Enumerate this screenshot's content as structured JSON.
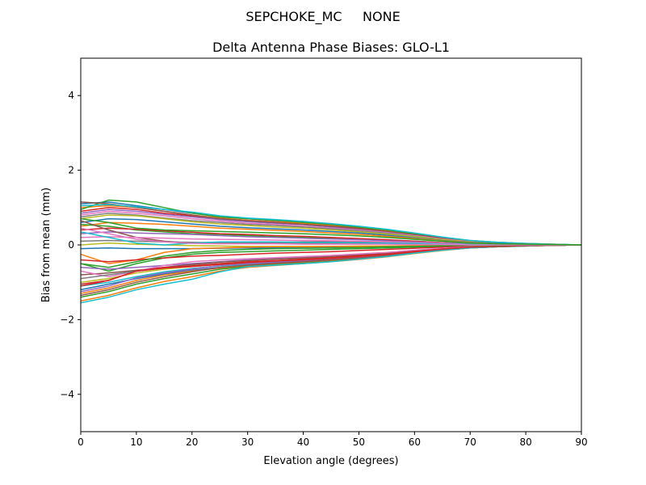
{
  "suptitle": "SEPCHOKE_MC     NONE",
  "chart_data": {
    "type": "line",
    "title": "Delta Antenna Phase Biases: GLO-L1",
    "xlabel": "Elevation angle (degrees)",
    "ylabel": "Bias from mean (mm)",
    "xlim": [
      0,
      90
    ],
    "ylim": [
      -5,
      5
    ],
    "xticks": [
      "0",
      "10",
      "20",
      "30",
      "40",
      "50",
      "60",
      "70",
      "80",
      "90"
    ],
    "yticks": [
      "−4",
      "−2",
      "0",
      "2",
      "4"
    ],
    "grid": false,
    "x": [
      0,
      5,
      10,
      15,
      20,
      25,
      30,
      35,
      40,
      45,
      50,
      55,
      60,
      65,
      70,
      75,
      80,
      85,
      90
    ],
    "series": [
      {
        "color": "#1f77b4",
        "values": [
          1.1,
          1.15,
          1.05,
          0.95,
          0.85,
          0.75,
          0.7,
          0.65,
          0.6,
          0.55,
          0.48,
          0.4,
          0.3,
          0.2,
          0.1,
          0.06,
          0.03,
          0.01,
          0.0
        ]
      },
      {
        "color": "#ff7f0e",
        "values": [
          1.0,
          1.05,
          1.0,
          0.9,
          0.8,
          0.72,
          0.66,
          0.62,
          0.58,
          0.52,
          0.45,
          0.38,
          0.28,
          0.18,
          0.1,
          0.06,
          0.03,
          0.01,
          0.0
        ]
      },
      {
        "color": "#2ca02c",
        "values": [
          0.95,
          1.2,
          1.15,
          1.0,
          0.85,
          0.75,
          0.7,
          0.66,
          0.6,
          0.55,
          0.47,
          0.4,
          0.3,
          0.2,
          0.12,
          0.07,
          0.04,
          0.02,
          0.0
        ]
      },
      {
        "color": "#d62728",
        "values": [
          0.9,
          1.0,
          0.95,
          0.85,
          0.78,
          0.7,
          0.64,
          0.6,
          0.55,
          0.5,
          0.44,
          0.36,
          0.27,
          0.18,
          0.1,
          0.06,
          0.03,
          0.01,
          0.0
        ]
      },
      {
        "color": "#9467bd",
        "values": [
          0.85,
          0.95,
          0.9,
          0.82,
          0.75,
          0.68,
          0.62,
          0.58,
          0.54,
          0.48,
          0.42,
          0.35,
          0.26,
          0.17,
          0.09,
          0.05,
          0.03,
          0.01,
          0.0
        ]
      },
      {
        "color": "#8c564b",
        "values": [
          1.15,
          1.1,
          1.0,
          0.9,
          0.8,
          0.7,
          0.65,
          0.6,
          0.55,
          0.5,
          0.43,
          0.36,
          0.27,
          0.18,
          0.1,
          0.05,
          0.03,
          0.01,
          0.0
        ]
      },
      {
        "color": "#e377c2",
        "values": [
          0.8,
          0.9,
          0.85,
          0.78,
          0.7,
          0.64,
          0.58,
          0.55,
          0.5,
          0.45,
          0.4,
          0.33,
          0.25,
          0.16,
          0.09,
          0.05,
          0.02,
          0.01,
          0.0
        ]
      },
      {
        "color": "#7f7f7f",
        "values": [
          0.75,
          0.85,
          0.8,
          0.72,
          0.65,
          0.6,
          0.55,
          0.52,
          0.48,
          0.43,
          0.38,
          0.31,
          0.23,
          0.15,
          0.08,
          0.05,
          0.02,
          0.01,
          0.0
        ]
      },
      {
        "color": "#bcbd22",
        "values": [
          0.7,
          0.8,
          0.78,
          0.7,
          0.62,
          0.56,
          0.52,
          0.48,
          0.45,
          0.4,
          0.35,
          0.29,
          0.22,
          0.14,
          0.08,
          0.04,
          0.02,
          0.01,
          0.0
        ]
      },
      {
        "color": "#17becf",
        "values": [
          1.05,
          1.08,
          1.02,
          0.95,
          0.88,
          0.78,
          0.72,
          0.68,
          0.63,
          0.57,
          0.5,
          0.42,
          0.32,
          0.21,
          0.12,
          0.07,
          0.04,
          0.02,
          0.0
        ]
      },
      {
        "color": "#1f77b4",
        "values": [
          0.6,
          0.7,
          0.68,
          0.62,
          0.56,
          0.5,
          0.46,
          0.43,
          0.4,
          0.36,
          0.32,
          0.26,
          0.19,
          0.12,
          0.07,
          0.04,
          0.02,
          0.01,
          0.0
        ]
      },
      {
        "color": "#ff7f0e",
        "values": [
          0.5,
          0.6,
          0.58,
          0.55,
          0.5,
          0.45,
          0.42,
          0.39,
          0.36,
          0.32,
          0.28,
          0.23,
          0.17,
          0.11,
          0.06,
          0.03,
          0.02,
          0.01,
          0.0
        ]
      },
      {
        "color": "#2ca02c",
        "values": [
          0.55,
          0.5,
          0.4,
          0.35,
          0.3,
          0.28,
          0.25,
          0.22,
          0.2,
          0.18,
          0.16,
          0.13,
          0.1,
          0.06,
          0.03,
          0.02,
          0.01,
          0.0,
          0.0
        ]
      },
      {
        "color": "#d62728",
        "values": [
          0.4,
          0.45,
          0.42,
          0.38,
          0.34,
          0.3,
          0.28,
          0.25,
          0.23,
          0.2,
          0.17,
          0.14,
          0.1,
          0.06,
          0.03,
          0.02,
          0.01,
          0.0,
          0.0
        ]
      },
      {
        "color": "#9467bd",
        "values": [
          0.3,
          0.35,
          0.32,
          0.3,
          0.28,
          0.25,
          0.22,
          0.2,
          0.18,
          0.16,
          0.14,
          0.11,
          0.08,
          0.05,
          0.03,
          0.02,
          0.01,
          0.0,
          0.0
        ]
      },
      {
        "color": "#8c564b",
        "values": [
          0.65,
          0.4,
          0.2,
          0.1,
          0.05,
          0.05,
          0.06,
          0.07,
          0.08,
          0.08,
          0.08,
          0.07,
          0.05,
          0.03,
          0.02,
          0.01,
          0.0,
          0.0,
          0.0
        ]
      },
      {
        "color": "#e377c2",
        "values": [
          0.2,
          0.22,
          0.2,
          0.18,
          0.16,
          0.15,
          0.14,
          0.13,
          0.12,
          0.11,
          0.1,
          0.08,
          0.06,
          0.04,
          0.02,
          0.01,
          0.01,
          0.0,
          0.0
        ]
      },
      {
        "color": "#7f7f7f",
        "values": [
          0.1,
          0.12,
          0.1,
          0.08,
          0.07,
          0.06,
          0.05,
          0.05,
          0.04,
          0.04,
          0.03,
          0.03,
          0.02,
          0.01,
          0.01,
          0.0,
          0.0,
          0.0,
          0.0
        ]
      },
      {
        "color": "#bcbd22",
        "values": [
          0.0,
          0.05,
          0.02,
          0.0,
          -0.02,
          -0.03,
          -0.04,
          -0.04,
          -0.04,
          -0.04,
          -0.03,
          -0.03,
          -0.02,
          -0.01,
          -0.01,
          0.0,
          0.0,
          0.0,
          0.0
        ]
      },
      {
        "color": "#17becf",
        "values": [
          0.35,
          0.2,
          0.05,
          0.0,
          0.05,
          0.08,
          0.08,
          0.08,
          0.07,
          0.07,
          0.06,
          0.05,
          0.04,
          0.02,
          0.01,
          0.01,
          0.0,
          0.0,
          0.0
        ]
      },
      {
        "color": "#1f77b4",
        "values": [
          -0.1,
          -0.08,
          -0.1,
          -0.1,
          -0.1,
          -0.09,
          -0.08,
          -0.08,
          -0.07,
          -0.07,
          -0.06,
          -0.05,
          -0.04,
          -0.02,
          -0.01,
          -0.01,
          0.0,
          0.0,
          0.0
        ]
      },
      {
        "color": "#ff7f0e",
        "values": [
          -0.25,
          -0.5,
          -0.4,
          -0.2,
          -0.1,
          -0.08,
          -0.06,
          -0.05,
          -0.05,
          -0.04,
          -0.04,
          -0.03,
          -0.02,
          -0.01,
          -0.01,
          0.0,
          0.0,
          0.0,
          0.0
        ]
      },
      {
        "color": "#2ca02c",
        "values": [
          -0.5,
          -0.7,
          -0.5,
          -0.35,
          -0.25,
          -0.2,
          -0.18,
          -0.16,
          -0.14,
          -0.12,
          -0.1,
          -0.08,
          -0.06,
          -0.04,
          -0.02,
          -0.01,
          -0.01,
          0.0,
          0.0
        ]
      },
      {
        "color": "#d62728",
        "values": [
          -0.4,
          -0.45,
          -0.4,
          -0.35,
          -0.3,
          -0.28,
          -0.25,
          -0.22,
          -0.2,
          -0.18,
          -0.15,
          -0.12,
          -0.09,
          -0.06,
          -0.03,
          -0.02,
          -0.01,
          0.0,
          0.0
        ]
      },
      {
        "color": "#9467bd",
        "values": [
          -0.6,
          -0.65,
          -0.6,
          -0.55,
          -0.5,
          -0.45,
          -0.4,
          -0.36,
          -0.33,
          -0.3,
          -0.26,
          -0.21,
          -0.15,
          -0.1,
          -0.05,
          -0.03,
          -0.02,
          -0.01,
          0.0
        ]
      },
      {
        "color": "#8c564b",
        "values": [
          -0.8,
          -0.75,
          -0.68,
          -0.6,
          -0.52,
          -0.46,
          -0.42,
          -0.38,
          -0.35,
          -0.31,
          -0.27,
          -0.22,
          -0.16,
          -0.1,
          -0.05,
          -0.03,
          -0.02,
          -0.01,
          0.0
        ]
      },
      {
        "color": "#e377c2",
        "values": [
          -0.7,
          -0.85,
          -0.7,
          -0.55,
          -0.45,
          -0.4,
          -0.37,
          -0.34,
          -0.31,
          -0.28,
          -0.24,
          -0.2,
          -0.14,
          -0.09,
          -0.05,
          -0.03,
          -0.02,
          -0.01,
          0.0
        ]
      },
      {
        "color": "#7f7f7f",
        "values": [
          -0.9,
          -0.8,
          -0.7,
          -0.62,
          -0.55,
          -0.5,
          -0.46,
          -0.42,
          -0.38,
          -0.34,
          -0.3,
          -0.24,
          -0.17,
          -0.11,
          -0.06,
          -0.04,
          -0.02,
          -0.01,
          0.0
        ]
      },
      {
        "color": "#bcbd22",
        "values": [
          -1.0,
          -0.9,
          -0.75,
          -0.65,
          -0.58,
          -0.52,
          -0.48,
          -0.44,
          -0.4,
          -0.36,
          -0.31,
          -0.25,
          -0.18,
          -0.12,
          -0.06,
          -0.04,
          -0.02,
          -0.01,
          0.0
        ]
      },
      {
        "color": "#17becf",
        "values": [
          -1.1,
          -1.0,
          -0.85,
          -0.72,
          -0.63,
          -0.56,
          -0.52,
          -0.48,
          -0.44,
          -0.39,
          -0.33,
          -0.27,
          -0.19,
          -0.12,
          -0.07,
          -0.04,
          -0.02,
          -0.01,
          0.0
        ]
      },
      {
        "color": "#1f77b4",
        "values": [
          -1.2,
          -1.05,
          -0.9,
          -0.78,
          -0.68,
          -0.6,
          -0.55,
          -0.5,
          -0.46,
          -0.41,
          -0.35,
          -0.28,
          -0.2,
          -0.13,
          -0.07,
          -0.04,
          -0.02,
          -0.01,
          0.0
        ]
      },
      {
        "color": "#ff7f0e",
        "values": [
          -1.3,
          -1.15,
          -0.95,
          -0.8,
          -0.7,
          -0.62,
          -0.57,
          -0.52,
          -0.48,
          -0.43,
          -0.37,
          -0.3,
          -0.21,
          -0.14,
          -0.08,
          -0.05,
          -0.03,
          -0.01,
          0.0
        ]
      },
      {
        "color": "#2ca02c",
        "values": [
          -1.4,
          -1.25,
          -1.05,
          -0.9,
          -0.78,
          -0.65,
          -0.58,
          -0.53,
          -0.49,
          -0.44,
          -0.38,
          -0.31,
          -0.22,
          -0.14,
          -0.08,
          -0.05,
          -0.03,
          -0.01,
          0.0
        ]
      },
      {
        "color": "#d62728",
        "values": [
          -1.05,
          -0.95,
          -0.7,
          -0.6,
          -0.56,
          -0.5,
          -0.45,
          -0.42,
          -0.38,
          -0.34,
          -0.29,
          -0.24,
          -0.17,
          -0.11,
          -0.06,
          -0.04,
          -0.02,
          -0.01,
          0.0
        ]
      },
      {
        "color": "#9467bd",
        "values": [
          -1.25,
          -1.1,
          -0.88,
          -0.75,
          -0.65,
          -0.55,
          -0.5,
          -0.46,
          -0.42,
          -0.38,
          -0.32,
          -0.26,
          -0.19,
          -0.12,
          -0.07,
          -0.04,
          -0.02,
          -0.01,
          0.0
        ]
      },
      {
        "color": "#8c564b",
        "values": [
          -1.35,
          -1.2,
          -1.0,
          -0.85,
          -0.72,
          -0.6,
          -0.54,
          -0.49,
          -0.45,
          -0.4,
          -0.35,
          -0.28,
          -0.2,
          -0.13,
          -0.07,
          -0.04,
          -0.02,
          -0.01,
          0.0
        ]
      },
      {
        "color": "#ff7f0e",
        "values": [
          -1.5,
          -1.35,
          -1.15,
          -0.98,
          -0.85,
          -0.7,
          -0.6,
          -0.55,
          -0.5,
          -0.45,
          -0.39,
          -0.32,
          -0.23,
          -0.15,
          -0.08,
          -0.05,
          -0.03,
          -0.01,
          0.0
        ]
      },
      {
        "color": "#17becf",
        "values": [
          -1.55,
          -1.4,
          -1.2,
          -1.05,
          -0.92,
          -0.72,
          -0.58,
          -0.54,
          -0.5,
          -0.45,
          -0.38,
          -0.31,
          -0.22,
          -0.14,
          -0.08,
          -0.05,
          -0.03,
          -0.01,
          0.0
        ]
      },
      {
        "color": "#d62728",
        "values": [
          -1.1,
          -0.95,
          -0.7,
          -0.62,
          -0.58,
          -0.52,
          -0.47,
          -0.43,
          -0.4,
          -0.36,
          -0.31,
          -0.25,
          -0.18,
          -0.11,
          -0.06,
          -0.04,
          -0.02,
          -0.01,
          0.0
        ]
      },
      {
        "color": "#2ca02c",
        "values": [
          -0.5,
          -0.6,
          -0.45,
          -0.3,
          -0.2,
          -0.15,
          -0.12,
          -0.1,
          -0.09,
          -0.08,
          -0.07,
          -0.05,
          -0.04,
          -0.02,
          -0.01,
          -0.01,
          0.0,
          0.0,
          0.0
        ]
      },
      {
        "color": "#e377c2",
        "values": [
          0.45,
          0.3,
          0.15,
          0.08,
          0.04,
          0.03,
          0.03,
          0.03,
          0.02,
          0.02,
          0.02,
          0.02,
          0.01,
          0.01,
          0.0,
          0.0,
          0.0,
          0.0,
          0.0
        ]
      },
      {
        "color": "#2ca02c",
        "values": [
          0.7,
          0.6,
          0.45,
          0.4,
          0.38,
          0.36,
          0.34,
          0.32,
          0.3,
          0.27,
          0.24,
          0.2,
          0.15,
          0.1,
          0.05,
          0.03,
          0.02,
          0.01,
          0.0
        ]
      }
    ]
  }
}
